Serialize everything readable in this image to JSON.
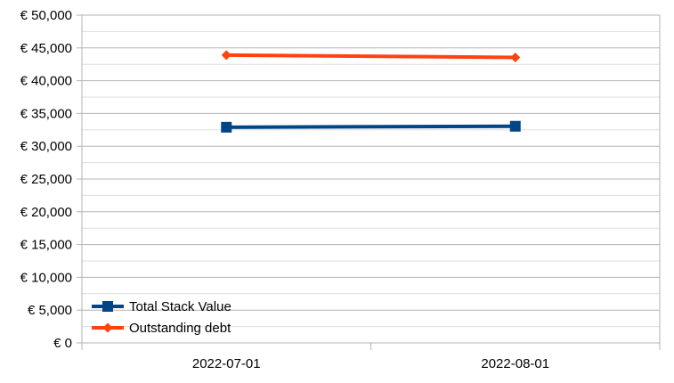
{
  "chart_data": {
    "type": "line",
    "title": "",
    "xlabel": "",
    "ylabel": "",
    "categories": [
      "2022-07-01",
      "2022-08-01"
    ],
    "ylim": [
      0,
      50000
    ],
    "ytick_step": 5000,
    "yticks": [
      "€ 0",
      "€ 5,000",
      "€ 10,000",
      "€ 15,000",
      "€ 20,000",
      "€ 25,000",
      "€ 30,000",
      "€ 35,000",
      "€ 40,000",
      "€ 45,000",
      "€ 50,000"
    ],
    "grid": true,
    "minor_grid": true,
    "legend_position": "bottom-left",
    "series": [
      {
        "name": "Total Stack Value",
        "values": [
          32900,
          33050
        ],
        "color": "#004586",
        "marker": "square"
      },
      {
        "name": "Outstanding debt",
        "values": [
          43900,
          43550
        ],
        "color": "#ff420e",
        "marker": "diamond"
      }
    ]
  }
}
